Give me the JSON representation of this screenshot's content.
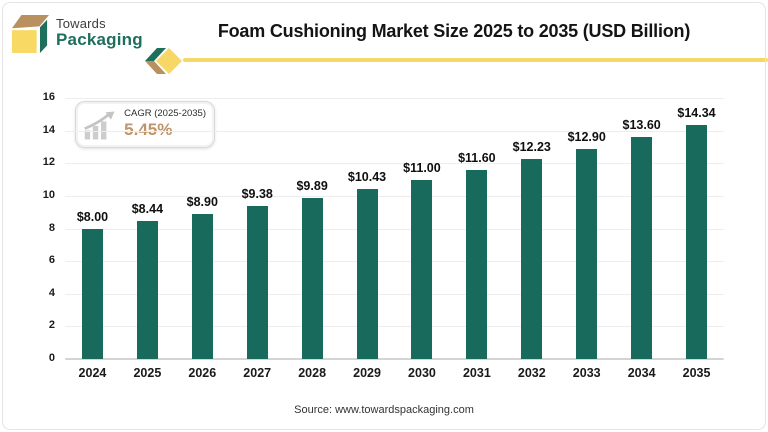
{
  "brand": {
    "name_line1": "Towards",
    "name_line2": "Packaging"
  },
  "header": {
    "title": "Foam Cushioning Market Size 2025 to 2035 (USD Billion)"
  },
  "cagr": {
    "label": "CAGR (2025-2035)",
    "value": "5.45%",
    "value_color": "#bf9468"
  },
  "chart_data": {
    "type": "bar",
    "title": "Foam Cushioning Market Size 2025 to 2035 (USD Billion)",
    "unit": "USD Billion",
    "categories": [
      "2024",
      "2025",
      "2026",
      "2027",
      "2028",
      "2029",
      "2030",
      "2031",
      "2032",
      "2033",
      "2034",
      "2035"
    ],
    "values": [
      8.0,
      8.44,
      8.9,
      9.38,
      9.89,
      10.43,
      11.0,
      11.6,
      12.23,
      12.9,
      13.6,
      14.34
    ],
    "value_labels": [
      "$8.00",
      "$8.44",
      "$8.90",
      "$9.38",
      "$9.89",
      "$10.43",
      "$11.00",
      "$11.60",
      "$12.23",
      "$12.90",
      "$13.60",
      "$14.34"
    ],
    "ylim": [
      0,
      16
    ],
    "ytick_step": 2,
    "grid": true,
    "legend": "none",
    "bar_color": "#176a5c",
    "xlabel": "",
    "ylabel": ""
  },
  "colors": {
    "accent_green": "#1e6f5c",
    "accent_yellow": "#f7d867",
    "accent_tan": "#b9905f",
    "gridline": "#ededed",
    "axis": "#d4d4d4"
  },
  "footer": {
    "source": "Source: www.towardspackaging.com"
  }
}
